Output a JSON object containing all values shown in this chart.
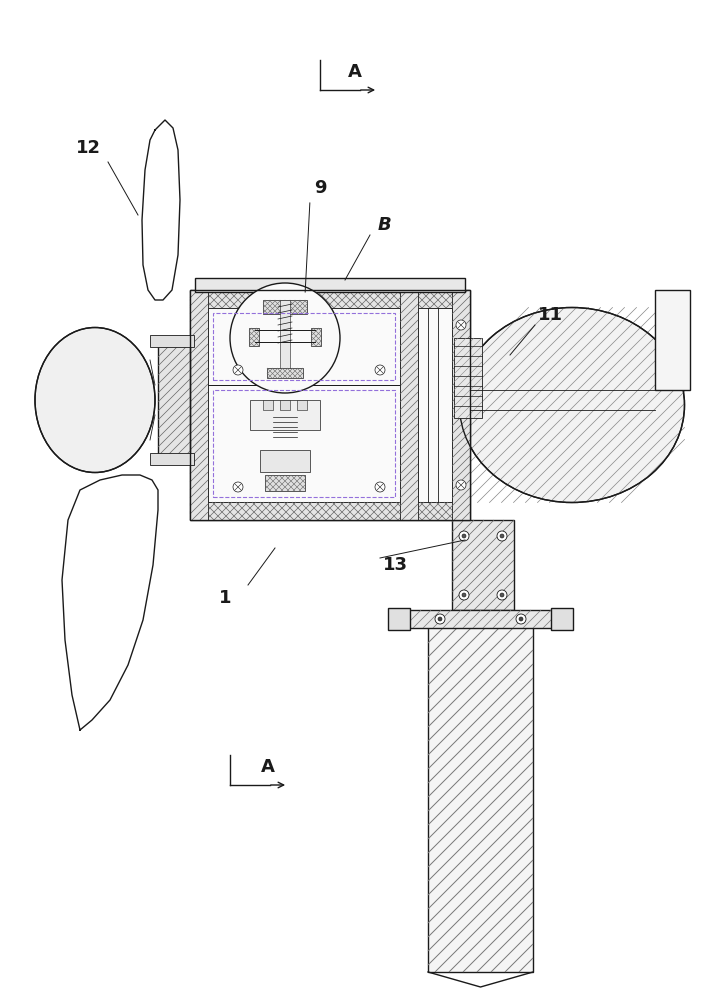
{
  "bg_color": "#ffffff",
  "line_color": "#1a1a1a",
  "labels": {
    "A_top": "A",
    "A_bottom": "A",
    "B": "B",
    "num_9": "9",
    "num_11": "11",
    "num_12": "12",
    "num_1": "1",
    "num_13": "13"
  },
  "figsize": [
    7.09,
    10.0
  ],
  "dpi": 100
}
